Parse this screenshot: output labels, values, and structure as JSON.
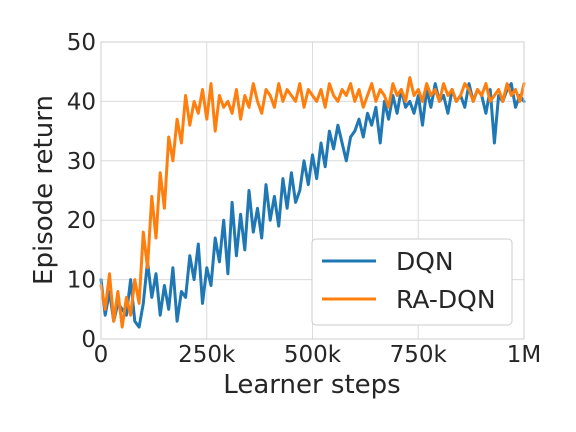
{
  "chart_data": {
    "type": "line",
    "title": "",
    "xlabel": "Learner steps",
    "ylabel": "Episode return",
    "xlim": [
      0,
      1000000
    ],
    "ylim": [
      0,
      50
    ],
    "grid": true,
    "legend_position": "lower-right",
    "x_ticks": [
      0,
      250000,
      500000,
      750000,
      1000000
    ],
    "x_tick_labels": [
      "0",
      "250k",
      "500k",
      "750k",
      "1M"
    ],
    "y_ticks": [
      0,
      10,
      20,
      30,
      40,
      50
    ],
    "y_tick_labels": [
      "0",
      "10",
      "20",
      "30",
      "40",
      "50"
    ],
    "series": [
      {
        "name": "DQN",
        "color": "#1f77b4",
        "x": [
          0,
          10000,
          20000,
          30000,
          40000,
          50000,
          60000,
          70000,
          80000,
          90000,
          100000,
          110000,
          120000,
          130000,
          140000,
          150000,
          160000,
          170000,
          180000,
          190000,
          200000,
          210000,
          220000,
          230000,
          240000,
          250000,
          260000,
          270000,
          280000,
          290000,
          300000,
          310000,
          320000,
          330000,
          340000,
          350000,
          360000,
          370000,
          380000,
          390000,
          400000,
          410000,
          420000,
          430000,
          440000,
          450000,
          460000,
          470000,
          480000,
          490000,
          500000,
          510000,
          520000,
          530000,
          540000,
          550000,
          560000,
          570000,
          580000,
          590000,
          600000,
          610000,
          620000,
          630000,
          640000,
          650000,
          660000,
          670000,
          680000,
          690000,
          700000,
          710000,
          720000,
          730000,
          740000,
          750000,
          760000,
          770000,
          780000,
          790000,
          800000,
          810000,
          820000,
          830000,
          840000,
          850000,
          860000,
          870000,
          880000,
          890000,
          900000,
          910000,
          920000,
          930000,
          940000,
          950000,
          960000,
          970000,
          980000,
          990000,
          1000000
        ],
        "y": [
          10,
          4,
          8,
          3,
          6,
          5,
          4,
          10,
          3,
          2,
          6,
          13,
          7,
          11,
          4,
          9,
          5,
          12,
          3,
          8,
          7,
          14,
          10,
          16,
          6,
          12,
          9,
          17,
          13,
          20,
          11,
          23,
          14,
          21,
          15,
          25,
          18,
          22,
          17,
          26,
          20,
          24,
          19,
          27,
          22,
          28,
          23,
          25,
          30,
          26,
          31,
          27,
          33,
          29,
          35,
          32,
          36,
          33,
          30,
          34,
          35,
          37,
          34,
          38,
          36,
          39,
          33,
          40,
          37,
          41,
          38,
          42,
          39,
          40,
          38,
          41,
          36,
          42,
          39,
          43,
          40,
          41,
          38,
          42,
          40,
          41,
          39,
          43,
          40,
          42,
          41,
          38,
          42,
          33,
          41,
          40,
          42,
          43,
          39,
          41,
          40
        ]
      },
      {
        "name": "RA-DQN",
        "color": "#ff7f0e",
        "x": [
          0,
          10000,
          20000,
          30000,
          40000,
          50000,
          60000,
          70000,
          80000,
          90000,
          100000,
          110000,
          120000,
          130000,
          140000,
          150000,
          160000,
          170000,
          180000,
          190000,
          200000,
          210000,
          220000,
          230000,
          240000,
          250000,
          260000,
          270000,
          280000,
          290000,
          300000,
          310000,
          320000,
          330000,
          340000,
          350000,
          360000,
          370000,
          380000,
          390000,
          400000,
          410000,
          420000,
          430000,
          440000,
          450000,
          460000,
          470000,
          480000,
          490000,
          500000,
          510000,
          520000,
          530000,
          540000,
          550000,
          560000,
          570000,
          580000,
          590000,
          600000,
          610000,
          620000,
          630000,
          640000,
          650000,
          660000,
          670000,
          680000,
          690000,
          700000,
          710000,
          720000,
          730000,
          740000,
          750000,
          760000,
          770000,
          780000,
          790000,
          800000,
          810000,
          820000,
          830000,
          840000,
          850000,
          860000,
          870000,
          880000,
          890000,
          900000,
          910000,
          920000,
          930000,
          940000,
          950000,
          960000,
          970000,
          980000,
          990000,
          1000000
        ],
        "y": [
          9,
          5,
          11,
          3,
          8,
          2,
          7,
          4,
          10,
          6,
          18,
          12,
          24,
          17,
          28,
          22,
          34,
          30,
          37,
          33,
          41,
          36,
          40,
          38,
          42,
          37,
          43,
          35,
          41,
          39,
          40,
          38,
          42,
          37,
          41,
          39,
          43,
          40,
          38,
          42,
          41,
          39,
          43,
          40,
          42,
          41,
          40,
          43,
          39,
          42,
          41,
          40,
          42,
          39,
          43,
          41,
          40,
          42,
          41,
          43,
          40,
          42,
          39,
          41,
          43,
          40,
          42,
          41,
          39,
          43,
          41,
          42,
          40,
          44,
          41,
          42,
          40,
          43,
          41,
          42,
          40,
          43,
          41,
          42,
          40,
          41,
          43,
          42,
          40,
          42,
          41,
          43,
          40,
          41,
          42,
          40,
          43,
          41,
          42,
          40,
          43
        ]
      }
    ]
  }
}
